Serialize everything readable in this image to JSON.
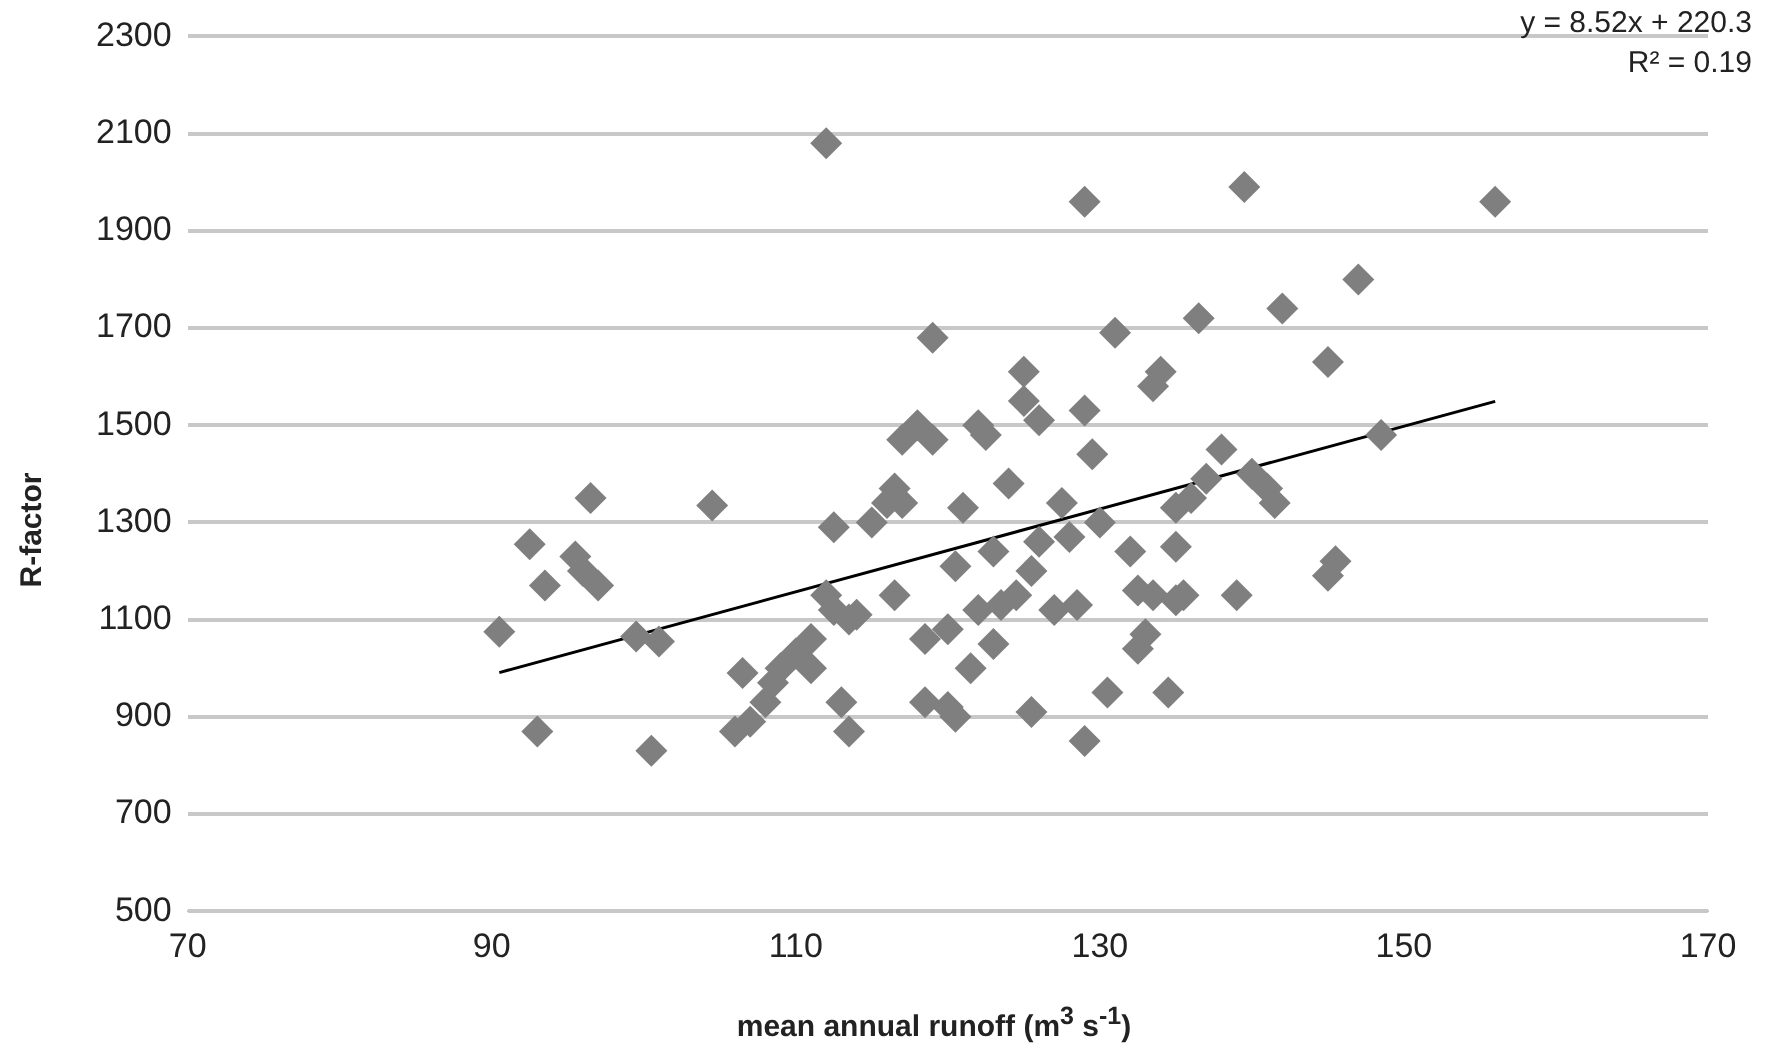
{
  "chart_data": {
    "type": "scatter",
    "xlabel": "mean annual runoff (m$^{3}$ s$^{-1}$)",
    "ylabel": "R-factor",
    "annotations": [
      "y = 8.52x + 220.3",
      "R² = 0.19"
    ],
    "xlim": [
      70,
      170
    ],
    "xticks": [
      70,
      90,
      110,
      130,
      150,
      170
    ],
    "ylim": [
      500,
      2300
    ],
    "yticks": [
      500,
      700,
      900,
      1100,
      1300,
      1500,
      1700,
      1900,
      2100,
      2300
    ],
    "grid": "y",
    "legend": false,
    "marker": "diamond",
    "series": [
      {
        "type": "scatter",
        "color": "#7f7f7f",
        "x": [
          90.5,
          92.5,
          93,
          93.5,
          95.5,
          96,
          96.5,
          97,
          99.5,
          100.5,
          101,
          104.5,
          106,
          106.5,
          107,
          108,
          108.5,
          109,
          110,
          111,
          111,
          112,
          112,
          112.5,
          112.5,
          113,
          113.5,
          113.5,
          114,
          115,
          116,
          116.5,
          116.5,
          117,
          117,
          118,
          118.5,
          118.5,
          119,
          119,
          120,
          120,
          120.5,
          120.5,
          121,
          121.5,
          122,
          122,
          122.5,
          123,
          123,
          123.5,
          124,
          124.5,
          125,
          125,
          125.5,
          125.5,
          126,
          126,
          127,
          127.5,
          128,
          128.5,
          129,
          129,
          129,
          129.5,
          130,
          130.5,
          131,
          132,
          132.5,
          132.5,
          133,
          133.5,
          133.5,
          134,
          134.5,
          135,
          135,
          135,
          135.5,
          136,
          136.5,
          137,
          138,
          139,
          139.5,
          140,
          141,
          141.5,
          142,
          145,
          145,
          145.5,
          147,
          148.5,
          156
        ],
        "values": [
          1075,
          1255,
          870,
          1170,
          1230,
          1200,
          1350,
          1170,
          1065,
          830,
          1055,
          1335,
          870,
          990,
          890,
          930,
          970,
          1000,
          1030,
          1060,
          1000,
          2080,
          1150,
          1290,
          1120,
          930,
          870,
          1100,
          1110,
          1300,
          1340,
          1370,
          1150,
          1470,
          1340,
          1500,
          1060,
          930,
          1680,
          1470,
          920,
          1080,
          900,
          1210,
          1330,
          1000,
          1120,
          1500,
          1480,
          1050,
          1240,
          1130,
          1380,
          1150,
          1610,
          1550,
          910,
          1200,
          1510,
          1260,
          1120,
          1340,
          1270,
          1130,
          850,
          1530,
          1960,
          1440,
          1300,
          950,
          1690,
          1240,
          1160,
          1040,
          1070,
          1150,
          1580,
          1610,
          950,
          1330,
          1250,
          1140,
          1150,
          1350,
          1720,
          1390,
          1450,
          1150,
          1990,
          1400,
          1370,
          1340,
          1740,
          1630,
          1190,
          1220,
          1800,
          1480,
          1960
        ]
      },
      {
        "type": "line",
        "color": "#000000",
        "marker": "none",
        "x": [
          90.5,
          156
        ],
        "values": [
          991,
          1549
        ]
      }
    ]
  }
}
